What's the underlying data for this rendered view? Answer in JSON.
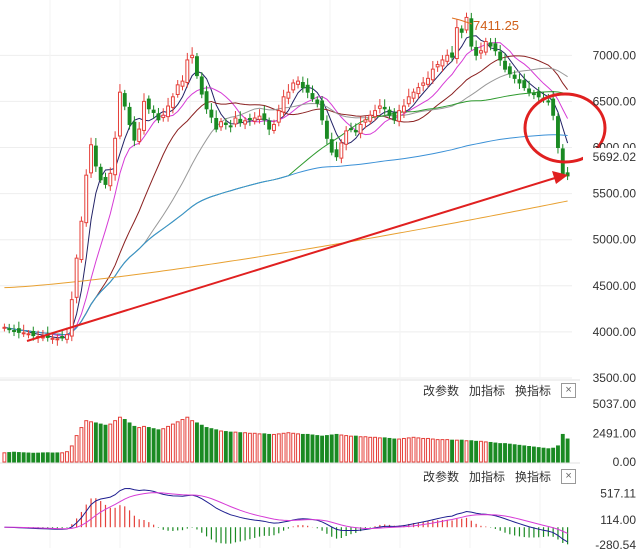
{
  "chart_data": {
    "type": "candlestick",
    "main": {
      "ylim": [
        3500,
        7600
      ],
      "y_ticks": [
        "7000.00",
        "6500.00",
        "6000.00",
        "5500.00",
        "5000.00",
        "4500.00",
        "4000.00",
        "3500.00"
      ],
      "y_tick_values": [
        7000,
        6500,
        6000,
        5500,
        5000,
        4500,
        4000,
        3500
      ],
      "last_price": "5692.02",
      "high_label": "7411.25",
      "high_value": 7411.25,
      "closes": [
        4050,
        4030,
        4010,
        3995,
        3990,
        3980,
        3960,
        3950,
        3945,
        3940,
        3930,
        3925,
        3935,
        3970,
        4350,
        4800,
        5200,
        5700,
        6030,
        5800,
        5650,
        5600,
        5720,
        6100,
        6600,
        6450,
        6250,
        6080,
        6200,
        6500,
        6420,
        6380,
        6300,
        6350,
        6450,
        6550,
        6680,
        6720,
        6950,
        7000,
        6780,
        6580,
        6420,
        6330,
        6200,
        6280,
        6250,
        6230,
        6320,
        6270,
        6290,
        6300,
        6320,
        6340,
        6300,
        6200,
        6250,
        6400,
        6550,
        6600,
        6700,
        6720,
        6650,
        6600,
        6530,
        6480,
        6300,
        6100,
        5950,
        5900,
        6050,
        6180,
        6200,
        6170,
        6250,
        6300,
        6350,
        6400,
        6450,
        6420,
        6350,
        6300,
        6400,
        6450,
        6550,
        6600,
        6650,
        6700,
        6750,
        6850,
        6900,
        6950,
        7000,
        6980,
        7300,
        7250,
        7411,
        7100,
        7000,
        7050,
        7150,
        7100,
        7050,
        6950,
        6850,
        6800,
        6750,
        6700,
        6650,
        6600,
        6580,
        6550,
        6520,
        6500,
        6350,
        6000,
        5700,
        5692
      ],
      "colors": {
        "up": "#e5403a",
        "down": "#1a8a23",
        "ma5": "#222266",
        "ma10": "#d63bd6",
        "ma20": "#8a2020",
        "ma30": "#999999",
        "ma60": "#2e9a2e",
        "ma120": "#3a90d6",
        "ma250": "#e8a030"
      },
      "ma_final": {
        "ma5": 6350,
        "ma10": 6550,
        "ma20": 6850,
        "ma30": 6700,
        "ma60": 6700,
        "ma120": 6500,
        "ma250": 5420
      }
    },
    "volume": {
      "ylim": [
        0,
        5400
      ],
      "y_ticks": [
        "5037.00",
        "2491.00",
        "0.00"
      ],
      "y_tick_values": [
        5037,
        2491,
        0
      ],
      "values": [
        800,
        820,
        850,
        820,
        800,
        780,
        760,
        770,
        790,
        800,
        780,
        790,
        800,
        900,
        1400,
        2300,
        3000,
        3600,
        3500,
        3400,
        3300,
        3200,
        3300,
        3600,
        3900,
        3700,
        3400,
        3100,
        3000,
        3100,
        3000,
        2900,
        2800,
        2900,
        3100,
        3300,
        3500,
        3700,
        3900,
        3600,
        3400,
        3200,
        3000,
        2900,
        2800,
        2700,
        2650,
        2600,
        2600,
        2550,
        2550,
        2500,
        2500,
        2450,
        2450,
        2400,
        2400,
        2450,
        2500,
        2550,
        2500,
        2450,
        2400,
        2400,
        2350,
        2300,
        2250,
        2300,
        2350,
        2400,
        2350,
        2300,
        2250,
        2250,
        2200,
        2200,
        2150,
        2150,
        2100,
        2100,
        2050,
        2000,
        2000,
        2050,
        2100,
        2150,
        2100,
        2050,
        2050,
        2000,
        1950,
        1950,
        1950,
        1900,
        1900,
        1900,
        1850,
        1850,
        1800,
        1800,
        1750,
        1700,
        1650,
        1600,
        1600,
        1550,
        1500,
        1450,
        1400,
        1350,
        1300,
        1250,
        1200,
        1150,
        1200,
        1400,
        2400,
        2000
      ]
    },
    "macd": {
      "ylim": [
        -320,
        650
      ],
      "y_ticks": [
        "517.11",
        "114.00",
        "-280.54"
      ],
      "y_tick_values": [
        517.11,
        114,
        -280.54
      ],
      "colors": {
        "dif": "#1e1e90",
        "dea": "#d63bd6"
      }
    },
    "indicator_bar": {
      "change_params": "改参数",
      "add_indicator": "加指标",
      "switch_indicator": "换指标",
      "close_symbol": "×"
    }
  }
}
